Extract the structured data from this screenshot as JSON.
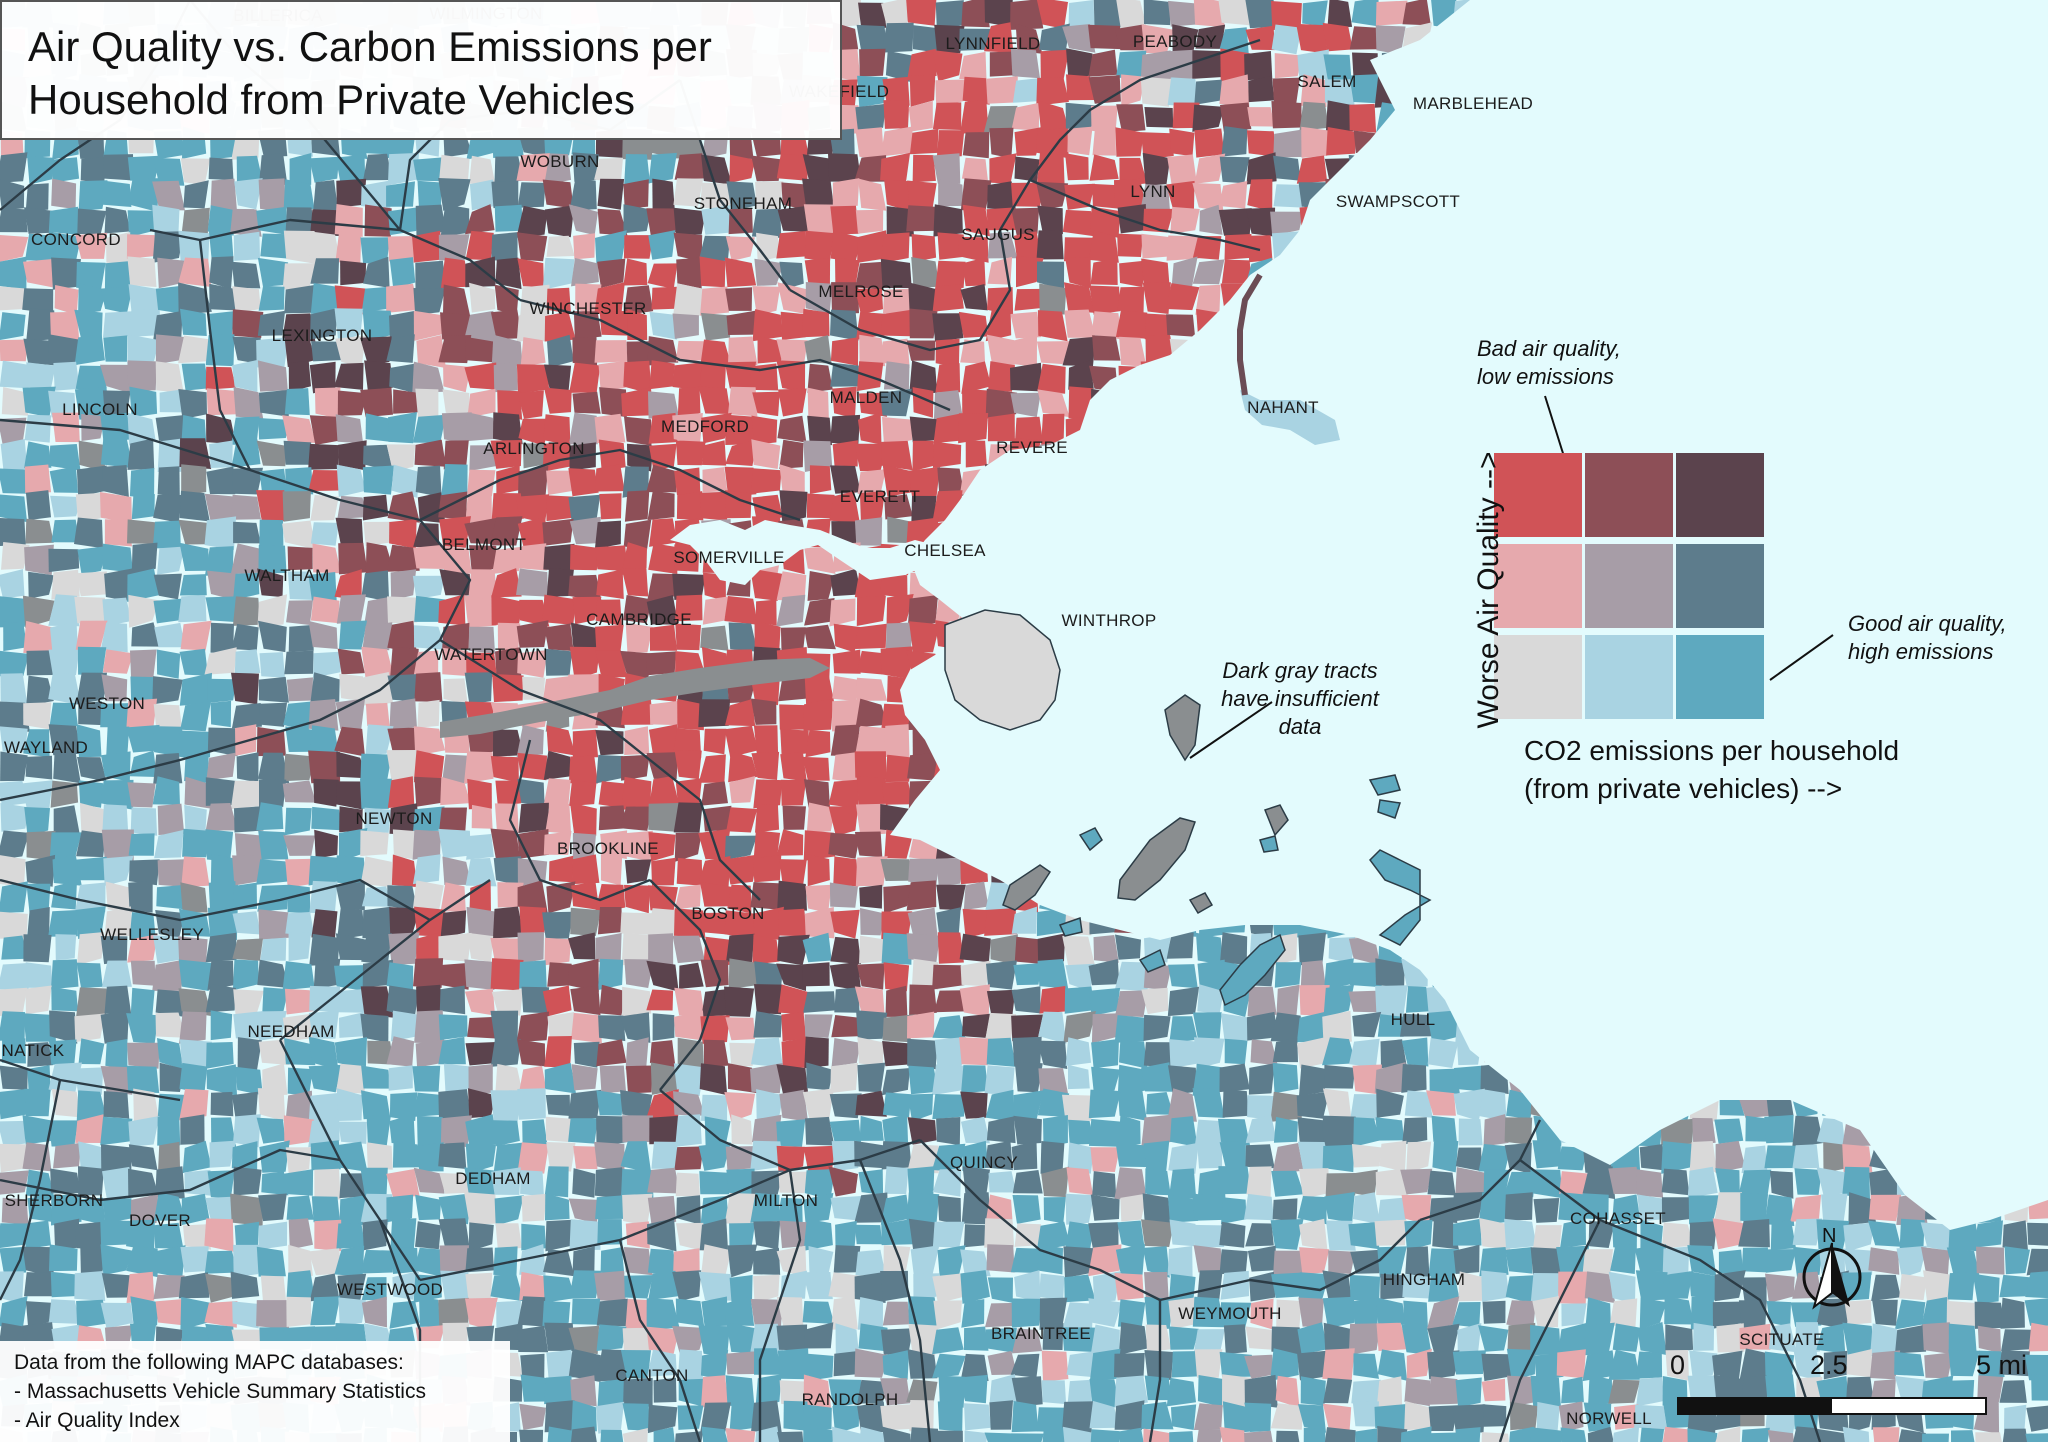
{
  "title": {
    "line1": "Air Quality vs. Carbon Emissions per",
    "line2": "Household from Private Vehicles"
  },
  "colors": {
    "water": "#e3fbfd",
    "boundary": "#2c3c46",
    "matrix": [
      [
        "#d9d9d9",
        "#a9d3e2",
        "#5ea9bf"
      ],
      [
        "#e6a9ad",
        "#a79da7",
        "#5d7c8c"
      ],
      [
        "#d05357",
        "#8d4f57",
        "#5b434d"
      ]
    ]
  },
  "towns": [
    {
      "name": "BILLERICA"
    },
    {
      "name": "WILMINGTON"
    },
    {
      "name": "LYNNFIELD"
    },
    {
      "name": "PEABODY"
    },
    {
      "name": "SALEM"
    },
    {
      "name": "MARBLEHEAD"
    },
    {
      "name": "WAKEFIELD"
    },
    {
      "name": "WOBURN"
    },
    {
      "name": "STONEHAM"
    },
    {
      "name": "LYNN"
    },
    {
      "name": "SWAMPSCOTT"
    },
    {
      "name": "CONCORD"
    },
    {
      "name": "SAUGUS"
    },
    {
      "name": "MELROSE"
    },
    {
      "name": "WINCHESTER"
    },
    {
      "name": "LEXINGTON"
    },
    {
      "name": "LINCOLN"
    },
    {
      "name": "MALDEN"
    },
    {
      "name": "NAHANT"
    },
    {
      "name": "MEDFORD"
    },
    {
      "name": "ARLINGTON"
    },
    {
      "name": "REVERE"
    },
    {
      "name": "EVERETT"
    },
    {
      "name": "BELMONT"
    },
    {
      "name": "SOMERVILLE"
    },
    {
      "name": "CHELSEA"
    },
    {
      "name": "WALTHAM"
    },
    {
      "name": "CAMBRIDGE"
    },
    {
      "name": "WINTHROP"
    },
    {
      "name": "WATERTOWN"
    },
    {
      "name": "WESTON"
    },
    {
      "name": "WAYLAND"
    },
    {
      "name": "NEWTON"
    },
    {
      "name": "BROOKLINE"
    },
    {
      "name": "BOSTON"
    },
    {
      "name": "WELLESLEY"
    },
    {
      "name": "HULL"
    },
    {
      "name": "NEEDHAM"
    },
    {
      "name": "NATICK"
    },
    {
      "name": "QUINCY"
    },
    {
      "name": "DEDHAM"
    },
    {
      "name": "MILTON"
    },
    {
      "name": "SHERBORN"
    },
    {
      "name": "DOVER"
    },
    {
      "name": "COHASSET"
    },
    {
      "name": "HINGHAM"
    },
    {
      "name": "WESTWOOD"
    },
    {
      "name": "WEYMOUTH"
    },
    {
      "name": "BRAINTREE"
    },
    {
      "name": "SCITUATE"
    },
    {
      "name": "CANTON"
    },
    {
      "name": "RANDOLPH"
    },
    {
      "name": "NORWELL"
    }
  ],
  "legend": {
    "note_bad": [
      "Bad air quality,",
      "low emissions"
    ],
    "note_good": [
      "Good air quality,",
      "high emissions"
    ],
    "y_axis": "Worse Air Quality -->",
    "x_axis": [
      "CO2 emissions per household",
      "(from private vehicles) -->"
    ]
  },
  "annotation": [
    "Dark gray tracts",
    "have insufficient",
    "data"
  ],
  "source": {
    "heading": "Data from the following MAPC databases:",
    "items": [
      "- Massachusetts Vehicle Summary Statistics",
      "- Air Quality Index"
    ]
  },
  "north_label": "N",
  "scale": {
    "labels": [
      "0",
      "2.5",
      "5 mi"
    ]
  }
}
